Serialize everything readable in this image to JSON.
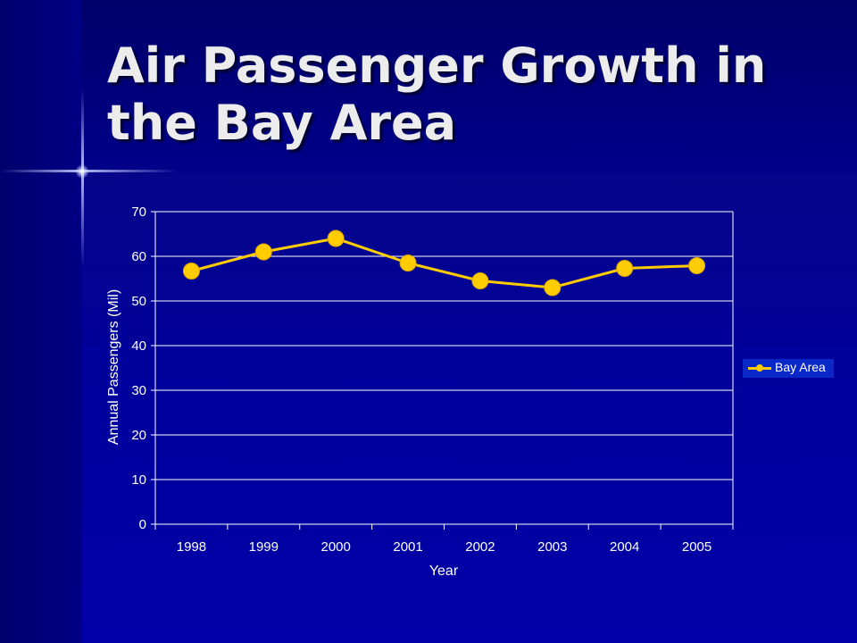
{
  "slide": {
    "title": "Air Passenger Growth in the Bay Area"
  },
  "colors": {
    "background": "#00007a",
    "series": "#ffcc00",
    "gridline": "#ffffff",
    "legend_bg": "#0a28c8"
  },
  "chart_data": {
    "type": "line",
    "title": "",
    "xlabel": "Year",
    "ylabel": "Annual Passengers (Mil)",
    "categories": [
      "1998",
      "1999",
      "2000",
      "2001",
      "2002",
      "2003",
      "2004",
      "2005"
    ],
    "series": [
      {
        "name": "Bay Area",
        "values": [
          56.7,
          61.0,
          64.0,
          58.5,
          54.5,
          53.0,
          57.3,
          57.9
        ]
      }
    ],
    "ylim": [
      0,
      70
    ],
    "yticks": [
      "0",
      "10",
      "20",
      "30",
      "40",
      "50",
      "60",
      "70"
    ],
    "grid": true,
    "legend_position": "right"
  }
}
